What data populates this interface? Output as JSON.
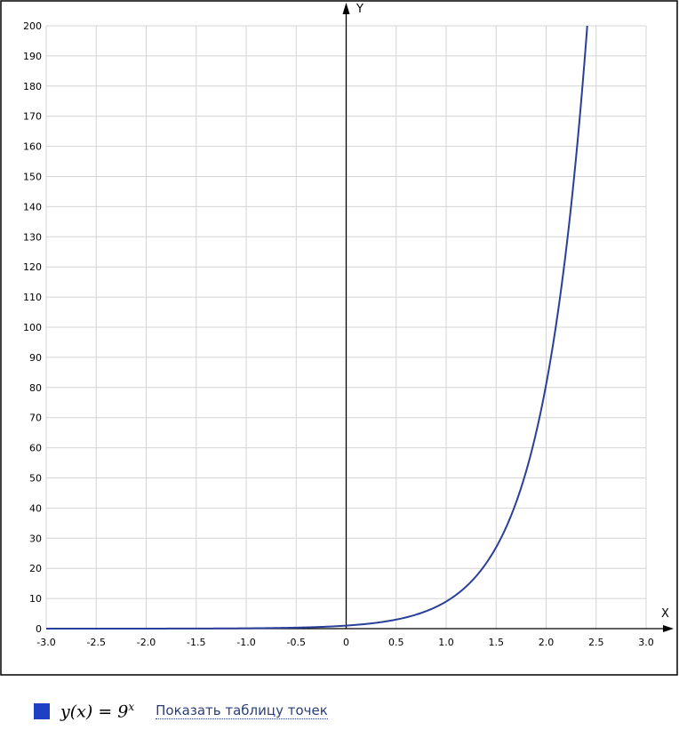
{
  "chart_data": {
    "type": "line",
    "title": "",
    "xlabel": "X",
    "ylabel": "Y",
    "xlim": [
      -3,
      3
    ],
    "ylim": [
      0,
      200
    ],
    "x_ticks": [
      "-3.0",
      "-2.5",
      "-2.0",
      "-1.5",
      "-1.0",
      "-0.5",
      "0",
      "0.5",
      "1.0",
      "1.5",
      "2.0",
      "2.5",
      "3.0"
    ],
    "y_ticks": [
      "0",
      "10",
      "20",
      "30",
      "40",
      "50",
      "60",
      "70",
      "80",
      "90",
      "100",
      "110",
      "120",
      "130",
      "140",
      "150",
      "160",
      "170",
      "180",
      "190",
      "200"
    ],
    "grid": true,
    "series": [
      {
        "name": "y(x) = 9^x",
        "function": "9^x",
        "color": "#2a3f9a",
        "x": [
          -3,
          -2.5,
          -2,
          -1.5,
          -1,
          -0.5,
          0,
          0.5,
          1,
          1.5,
          2,
          2.2,
          2.4
        ],
        "values": [
          0.0014,
          0.0041,
          0.0123,
          0.037,
          0.111,
          0.333,
          1,
          3,
          9,
          27,
          81,
          125.4,
          194.3
        ]
      }
    ]
  },
  "legend": {
    "swatch_color": "#1f3fc4",
    "formula_base": "y(x) = 9",
    "formula_exp": "x",
    "show_table_link": "Показать таблицу точек"
  }
}
